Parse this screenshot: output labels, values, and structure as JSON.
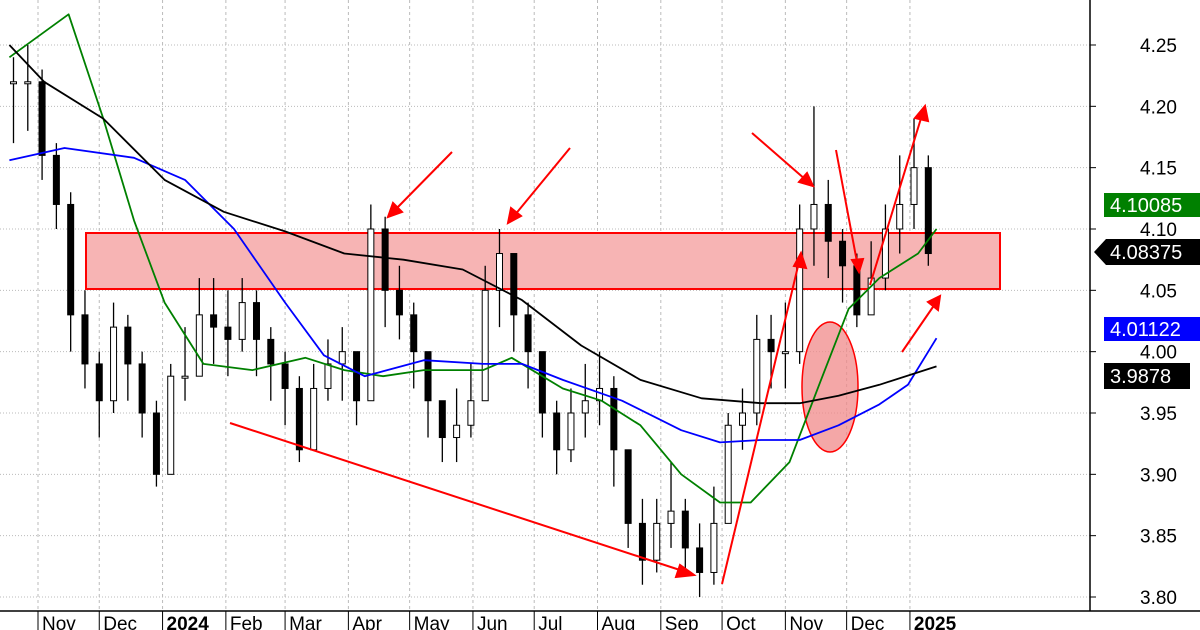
{
  "chart_data": {
    "type": "candlestick",
    "yaxis": {
      "ticks": [
        3.8,
        3.85,
        3.9,
        3.95,
        4.0,
        4.05,
        4.1,
        4.15,
        4.2,
        4.25
      ],
      "tick_labels": [
        "3.80",
        "3.85",
        "3.90",
        "3.95",
        "4.00",
        "4.05",
        "4.10",
        "4.15",
        "4.20",
        "4.25"
      ],
      "range": [
        3.79,
        4.28
      ],
      "position": "right"
    },
    "xaxis": {
      "months": [
        {
          "date": "2023-11-01",
          "label": "Nov",
          "bold": false
        },
        {
          "date": "2023-12-01",
          "label": "Dec",
          "bold": false
        },
        {
          "date": "2024-01-01",
          "label": "2024",
          "bold": true
        },
        {
          "date": "2024-02-01",
          "label": "Feb",
          "bold": false
        },
        {
          "date": "2024-03-01",
          "label": "Mar",
          "bold": false
        },
        {
          "date": "2024-04-01",
          "label": "Apr",
          "bold": false
        },
        {
          "date": "2024-05-01",
          "label": "May",
          "bold": false
        },
        {
          "date": "2024-06-01",
          "label": "Jun",
          "bold": false
        },
        {
          "date": "2024-07-01",
          "label": "Jul",
          "bold": false
        },
        {
          "date": "2024-08-01",
          "label": "Aug",
          "bold": false
        },
        {
          "date": "2024-09-01",
          "label": "Sep",
          "bold": false
        },
        {
          "date": "2024-10-01",
          "label": "Oct",
          "bold": false
        },
        {
          "date": "2024-11-01",
          "label": "Nov",
          "bold": false
        },
        {
          "date": "2024-12-01",
          "label": "Dec",
          "bold": false
        },
        {
          "date": "2025-01-01",
          "label": "2025",
          "bold": true
        }
      ]
    },
    "grid": true,
    "price": [
      [
        "2023-10-20",
        4.24,
        4.17,
        4.22
      ],
      [
        "2023-10-27",
        4.25,
        4.18,
        4.22
      ],
      [
        "2023-11-03",
        4.23,
        4.14,
        4.16
      ],
      [
        "2023-11-10",
        4.17,
        4.1,
        4.12
      ],
      [
        "2023-11-17",
        4.13,
        4.0,
        4.03
      ],
      [
        "2023-11-24",
        4.05,
        3.97,
        3.99
      ],
      [
        "2023-12-01",
        4.0,
        3.93,
        3.96
      ],
      [
        "2023-12-08",
        4.04,
        3.95,
        4.02
      ],
      [
        "2023-12-15",
        4.03,
        3.96,
        3.99
      ],
      [
        "2023-12-22",
        4.0,
        3.93,
        3.95
      ],
      [
        "2023-12-29",
        3.96,
        3.89,
        3.9
      ],
      [
        "2024-01-05",
        3.99,
        3.9,
        3.98
      ],
      [
        "2024-01-12",
        4.02,
        3.96,
        3.98
      ],
      [
        "2024-01-19",
        4.06,
        3.98,
        4.03
      ],
      [
        "2024-01-26",
        4.06,
        3.99,
        4.02
      ],
      [
        "2024-02-02",
        4.05,
        3.98,
        4.01
      ],
      [
        "2024-02-09",
        4.06,
        4.0,
        4.04
      ],
      [
        "2024-02-16",
        4.05,
        3.98,
        4.01
      ],
      [
        "2024-02-23",
        4.02,
        3.96,
        3.99
      ],
      [
        "2024-03-01",
        4.0,
        3.94,
        3.97
      ],
      [
        "2024-03-08",
        3.98,
        3.91,
        3.92
      ],
      [
        "2024-03-15",
        3.99,
        3.92,
        3.97
      ],
      [
        "2024-03-22",
        4.01,
        3.96,
        3.99
      ],
      [
        "2024-03-29",
        4.02,
        3.96,
        4.0
      ],
      [
        "2024-04-05",
        4.0,
        3.94,
        3.96
      ],
      [
        "2024-04-12",
        4.12,
        3.98,
        4.1
      ],
      [
        "2024-04-19",
        4.11,
        4.02,
        4.05
      ],
      [
        "2024-04-26",
        4.07,
        4.01,
        4.03
      ],
      [
        "2024-05-03",
        4.04,
        3.97,
        4.0
      ],
      [
        "2024-05-10",
        4.0,
        3.93,
        3.96
      ],
      [
        "2024-05-17",
        3.96,
        3.91,
        3.93
      ],
      [
        "2024-05-24",
        3.97,
        3.91,
        3.94
      ],
      [
        "2024-05-31",
        3.99,
        3.93,
        3.96
      ],
      [
        "2024-06-07",
        4.07,
        3.97,
        4.05
      ],
      [
        "2024-06-14",
        4.1,
        4.02,
        4.08
      ],
      [
        "2024-06-21",
        4.08,
        4.0,
        4.03
      ],
      [
        "2024-06-28",
        4.04,
        3.97,
        4.0
      ],
      [
        "2024-07-05",
        4.0,
        3.93,
        3.95
      ],
      [
        "2024-07-12",
        3.96,
        3.9,
        3.92
      ],
      [
        "2024-07-19",
        3.97,
        3.91,
        3.95
      ],
      [
        "2024-07-26",
        3.99,
        3.93,
        3.96
      ],
      [
        "2024-08-02",
        4.0,
        3.94,
        3.97
      ],
      [
        "2024-08-09",
        3.98,
        3.89,
        3.92
      ],
      [
        "2024-08-16",
        3.92,
        3.84,
        3.86
      ],
      [
        "2024-08-23",
        3.88,
        3.81,
        3.83
      ],
      [
        "2024-08-30",
        3.88,
        3.82,
        3.86
      ],
      [
        "2024-09-06",
        3.91,
        3.84,
        3.87
      ],
      [
        "2024-09-13",
        3.88,
        3.82,
        3.84
      ],
      [
        "2024-09-20",
        3.86,
        3.8,
        3.82
      ],
      [
        "2024-09-27",
        3.89,
        3.81,
        3.86
      ],
      [
        "2024-10-04",
        3.95,
        3.86,
        3.94
      ],
      [
        "2024-10-11",
        3.97,
        3.92,
        3.95
      ],
      [
        "2024-10-18",
        4.03,
        3.94,
        4.01
      ],
      [
        "2024-10-25",
        4.03,
        3.97,
        4.0
      ],
      [
        "2024-11-01",
        4.04,
        3.97,
        4.0
      ],
      [
        "2024-11-08",
        4.12,
        3.99,
        4.1
      ],
      [
        "2024-11-15",
        4.2,
        4.07,
        4.12
      ],
      [
        "2024-11-22",
        4.14,
        4.06,
        4.09
      ],
      [
        "2024-11-29",
        4.1,
        4.04,
        4.07
      ],
      [
        "2024-12-06",
        4.08,
        4.02,
        4.03
      ],
      [
        "2024-12-13",
        4.09,
        4.04,
        4.06
      ],
      [
        "2024-12-20",
        4.12,
        4.05,
        4.1
      ],
      [
        "2024-12-27",
        4.16,
        4.08,
        4.12
      ],
      [
        "2025-01-03",
        4.19,
        4.1,
        4.15
      ],
      [
        "2025-01-10",
        4.16,
        4.07,
        4.08
      ]
    ],
    "price_columns": [
      "date",
      "high",
      "low",
      "close"
    ],
    "series": [
      {
        "color": "#008000",
        "last_value_label": "4.10085",
        "points": [
          [
            "2023-10-18",
            4.24
          ],
          [
            "2023-11-16",
            4.275
          ],
          [
            "2023-12-03",
            4.19
          ],
          [
            "2023-12-18",
            4.107
          ],
          [
            "2024-01-02",
            4.04
          ],
          [
            "2024-01-21",
            3.99
          ],
          [
            "2024-02-14",
            3.985
          ],
          [
            "2024-03-11",
            3.995
          ],
          [
            "2024-03-30",
            3.985
          ],
          [
            "2024-04-18",
            3.98
          ],
          [
            "2024-05-08",
            3.985
          ],
          [
            "2024-06-06",
            3.985
          ],
          [
            "2024-06-20",
            3.995
          ],
          [
            "2024-07-15",
            3.97
          ],
          [
            "2024-08-03",
            3.96
          ],
          [
            "2024-08-22",
            3.94
          ],
          [
            "2024-09-11",
            3.9
          ],
          [
            "2024-09-30",
            3.877
          ],
          [
            "2024-10-15",
            3.877
          ],
          [
            "2024-11-03",
            3.91
          ],
          [
            "2024-11-18",
            3.975
          ],
          [
            "2024-12-02",
            4.035
          ],
          [
            "2024-12-17",
            4.06
          ],
          [
            "2025-01-05",
            4.08
          ],
          [
            "2025-01-14",
            4.1
          ]
        ]
      },
      {
        "color": "#0000ff",
        "last_value_label": "4.01122",
        "points": [
          [
            "2023-10-18",
            4.156
          ],
          [
            "2023-11-14",
            4.166
          ],
          [
            "2023-12-18",
            4.158
          ],
          [
            "2024-01-12",
            4.14
          ],
          [
            "2024-02-05",
            4.1
          ],
          [
            "2024-03-01",
            4.04
          ],
          [
            "2024-03-20",
            3.997
          ],
          [
            "2024-04-09",
            3.98
          ],
          [
            "2024-05-08",
            3.993
          ],
          [
            "2024-06-06",
            3.99
          ],
          [
            "2024-06-25",
            3.99
          ],
          [
            "2024-07-15",
            3.977
          ],
          [
            "2024-08-13",
            3.96
          ],
          [
            "2024-09-11",
            3.936
          ],
          [
            "2024-09-30",
            3.926
          ],
          [
            "2024-10-20",
            3.928
          ],
          [
            "2024-11-08",
            3.928
          ],
          [
            "2024-11-27",
            3.94
          ],
          [
            "2024-12-17",
            3.957
          ],
          [
            "2024-12-31",
            3.973
          ],
          [
            "2025-01-14",
            4.011
          ]
        ]
      },
      {
        "color": "#000000",
        "last_value_label": "3.9878",
        "points": [
          [
            "2023-10-18",
            4.25
          ],
          [
            "2023-11-04",
            4.22
          ],
          [
            "2023-12-03",
            4.19
          ],
          [
            "2024-01-02",
            4.14
          ],
          [
            "2024-01-31",
            4.114
          ],
          [
            "2024-03-01",
            4.098
          ],
          [
            "2024-03-30",
            4.08
          ],
          [
            "2024-04-28",
            4.075
          ],
          [
            "2024-05-27",
            4.067
          ],
          [
            "2024-06-25",
            4.042
          ],
          [
            "2024-07-24",
            4.005
          ],
          [
            "2024-08-22",
            3.977
          ],
          [
            "2024-09-21",
            3.962
          ],
          [
            "2024-10-20",
            3.958
          ],
          [
            "2024-11-08",
            3.958
          ],
          [
            "2024-11-27",
            3.964
          ],
          [
            "2024-12-17",
            3.973
          ],
          [
            "2025-01-14",
            3.988
          ]
        ]
      }
    ],
    "last_price_label": "4.08375",
    "colors": {
      "annotation": "#ff0000",
      "zone_fill": "#f7b4b4",
      "ma_short": "#008000",
      "ma_mid": "#0000ff",
      "ma_long": "#000000"
    }
  }
}
